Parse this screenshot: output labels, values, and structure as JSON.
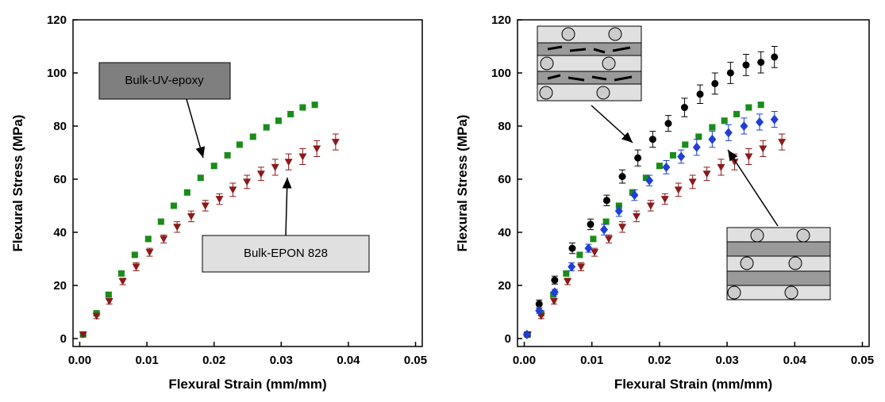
{
  "chart_data": [
    {
      "type": "scatter",
      "xlabel": "Flexural Strain (mm/mm)",
      "ylabel": "Flexural Stress (MPa)",
      "xlim": [
        -0.001,
        0.051
      ],
      "ylim": [
        -3,
        120
      ],
      "xticks": [
        {
          "value": 0,
          "label": "0.00"
        },
        0.01,
        0.02,
        0.03,
        0.04,
        0.05
      ],
      "yticks": [
        0,
        20,
        40,
        60,
        80,
        100,
        120
      ],
      "series": [
        {
          "name": "Bulk-UV-epoxy",
          "color": "#1a8c1a",
          "marker": "square",
          "x": [
            0.0005,
            0.0025,
            0.0043,
            0.0062,
            0.0082,
            0.0102,
            0.0121,
            0.014,
            0.016,
            0.018,
            0.02,
            0.022,
            0.0238,
            0.0258,
            0.0278,
            0.0296,
            0.0314,
            0.0332,
            0.035
          ],
          "values": [
            1.5,
            9.5,
            16.5,
            24.5,
            31.5,
            37.5,
            44,
            50,
            55,
            60.5,
            65,
            69,
            73,
            76,
            79.5,
            82,
            84.5,
            87,
            88
          ],
          "errors": [
            0.5,
            0.8,
            0.8,
            0.8,
            0.8,
            1,
            1,
            1,
            1,
            1,
            1,
            1,
            1,
            1,
            1,
            1,
            1,
            1,
            1
          ]
        },
        {
          "name": "Bulk-EPON 828",
          "color": "#8b1a1a",
          "marker": "triangle-down",
          "x": [
            0.0005,
            0.0025,
            0.0044,
            0.0064,
            0.0084,
            0.0104,
            0.0125,
            0.0145,
            0.0166,
            0.0187,
            0.0208,
            0.0228,
            0.0249,
            0.027,
            0.0291,
            0.0311,
            0.0332,
            0.0353,
            0.0381
          ],
          "values": [
            1.5,
            8.5,
            14,
            21.5,
            27,
            32.5,
            37.5,
            42,
            46,
            50,
            52.5,
            56,
            59,
            62,
            64.5,
            66.5,
            68.5,
            71.5,
            74
          ],
          "errors": [
            0.5,
            1,
            1,
            1.2,
            1.5,
            1.5,
            1.5,
            2,
            2,
            2,
            2,
            2.5,
            2.5,
            2.5,
            3,
            3,
            3,
            3,
            3
          ]
        }
      ]
    },
    {
      "type": "scatter",
      "xlabel": "Flexural Strain (mm/mm)",
      "ylabel": "Flexural Stress (MPa)",
      "xlim": [
        -0.001,
        0.051
      ],
      "ylim": [
        -3,
        120
      ],
      "xticks": [
        {
          "value": 0,
          "label": "0.00"
        },
        0.01,
        0.02,
        0.03,
        0.04,
        0.05
      ],
      "yticks": [
        0,
        20,
        40,
        60,
        80,
        100,
        120
      ],
      "series": [
        {
          "color": "#1a8c1a",
          "marker": "square",
          "x": [
            0.0005,
            0.0025,
            0.0043,
            0.0062,
            0.0082,
            0.0102,
            0.0121,
            0.014,
            0.016,
            0.018,
            0.02,
            0.022,
            0.0238,
            0.0258,
            0.0278,
            0.0296,
            0.0314,
            0.0332,
            0.035
          ],
          "values": [
            1.5,
            9.5,
            16.5,
            24.5,
            31.5,
            37.5,
            44,
            50,
            55,
            60.5,
            65,
            69,
            73,
            76,
            79.5,
            82,
            84.5,
            87,
            88
          ],
          "errors": [
            0.5,
            0.8,
            0.8,
            0.8,
            0.8,
            1,
            1,
            1,
            1,
            1,
            1,
            1,
            1,
            1,
            1,
            1,
            1,
            1,
            1
          ]
        },
        {
          "color": "#8b1a1a",
          "marker": "triangle-down",
          "x": [
            0.0005,
            0.0025,
            0.0044,
            0.0064,
            0.0084,
            0.0104,
            0.0125,
            0.0145,
            0.0166,
            0.0187,
            0.0208,
            0.0228,
            0.0249,
            0.027,
            0.0291,
            0.0311,
            0.0332,
            0.0353,
            0.0381
          ],
          "values": [
            1.5,
            8.5,
            14,
            21.5,
            27,
            32.5,
            37.5,
            42,
            46,
            50,
            52.5,
            56,
            59,
            62,
            64.5,
            66.5,
            68.5,
            71.5,
            74
          ],
          "errors": [
            0.5,
            1,
            1,
            1.2,
            1.5,
            1.5,
            1.5,
            2,
            2,
            2,
            2,
            2.5,
            2.5,
            2.5,
            3,
            3,
            3,
            3,
            3
          ]
        },
        {
          "color": "#000000",
          "marker": "circle",
          "x": [
            0.0004,
            0.0022,
            0.0045,
            0.0071,
            0.0098,
            0.0122,
            0.0145,
            0.0168,
            0.019,
            0.0213,
            0.0237,
            0.026,
            0.0282,
            0.0305,
            0.0328,
            0.035,
            0.037
          ],
          "values": [
            1.5,
            13,
            22,
            34,
            43,
            52,
            61,
            68,
            75,
            81,
            87,
            92,
            96,
            100,
            103,
            104,
            106
          ],
          "errors": [
            0.5,
            1.5,
            1.5,
            2,
            2,
            2,
            2.5,
            3,
            3,
            3,
            3.5,
            3.5,
            4,
            4,
            4,
            4,
            4
          ]
        },
        {
          "color": "#1f3fd6",
          "marker": "diamond",
          "x": [
            0.0004,
            0.0022,
            0.0045,
            0.007,
            0.0095,
            0.0118,
            0.014,
            0.0163,
            0.0185,
            0.021,
            0.0232,
            0.0255,
            0.0278,
            0.0302,
            0.0325,
            0.0348,
            0.037
          ],
          "values": [
            1.5,
            10.5,
            17.5,
            27,
            34,
            41,
            48,
            54,
            59.5,
            64.5,
            68.5,
            72,
            75,
            77.5,
            80,
            81.5,
            82.5
          ],
          "errors": [
            0.5,
            1,
            1,
            1.5,
            1.5,
            2,
            2,
            2,
            2,
            2.5,
            2.5,
            3,
            3,
            3,
            3,
            3,
            3
          ]
        }
      ]
    }
  ]
}
